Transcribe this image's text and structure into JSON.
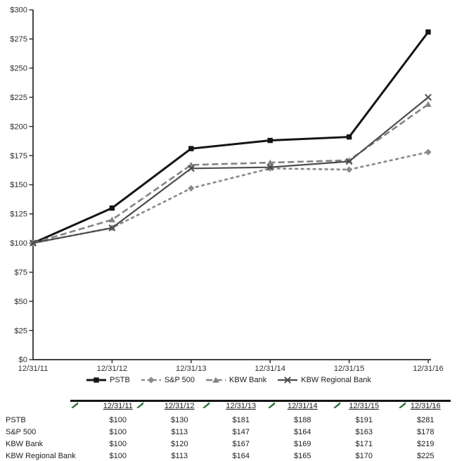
{
  "chart_data": {
    "type": "line",
    "title": "",
    "xlabel": "",
    "ylabel": "",
    "ylim": [
      0,
      300
    ],
    "ytick_step": 25,
    "ytick_labels": [
      "$0",
      "$25",
      "$50",
      "$75",
      "$100",
      "$125",
      "$150",
      "$175",
      "$200",
      "$225",
      "$250",
      "$275",
      "$300"
    ],
    "x_categories": [
      "12/31/11",
      "12/31/12",
      "12/31/13",
      "12/31/14",
      "12/31/15",
      "12/31/16"
    ],
    "grid": false,
    "legend_position": "bottom",
    "axis_color": "#262626",
    "series": [
      {
        "name": "PSTB",
        "values": [
          100,
          130,
          181,
          188,
          191,
          281
        ],
        "color": "#141414",
        "dash": "none",
        "marker": "square",
        "line_width": 3
      },
      {
        "name": "S&P 500",
        "values": [
          100,
          113,
          147,
          164,
          163,
          178
        ],
        "color": "#8a8a8a",
        "dash": "5 3.5",
        "marker": "diamond",
        "line_width": 2.6
      },
      {
        "name": "KBW Bank",
        "values": [
          100,
          120,
          167,
          169,
          171,
          219
        ],
        "color": "#848484",
        "dash": "9 4.5",
        "marker": "triangle",
        "line_width": 2.6
      },
      {
        "name": "KBW Regional Bank",
        "values": [
          100,
          113,
          164,
          165,
          170,
          225
        ],
        "color": "#4d4d4d",
        "dash": "none",
        "marker": "x",
        "line_width": 2.2
      }
    ]
  },
  "table": {
    "corner_tick_color": "#2c6e33",
    "columns": [
      "12/31/11",
      "12/31/12",
      "12/31/13",
      "12/31/14",
      "12/31/15",
      "12/31/16"
    ],
    "rows": [
      {
        "label": "PSTB",
        "values": [
          "$100",
          "$130",
          "$181",
          "$188",
          "$191",
          "$281"
        ]
      },
      {
        "label": "S&P 500",
        "values": [
          "$100",
          "$113",
          "$147",
          "$164",
          "$163",
          "$178"
        ]
      },
      {
        "label": "KBW Bank",
        "values": [
          "$100",
          "$120",
          "$167",
          "$169",
          "$171",
          "$219"
        ]
      },
      {
        "label": "KBW Regional Bank",
        "values": [
          "$100",
          "$113",
          "$164",
          "$165",
          "$170",
          "$225"
        ]
      }
    ]
  }
}
